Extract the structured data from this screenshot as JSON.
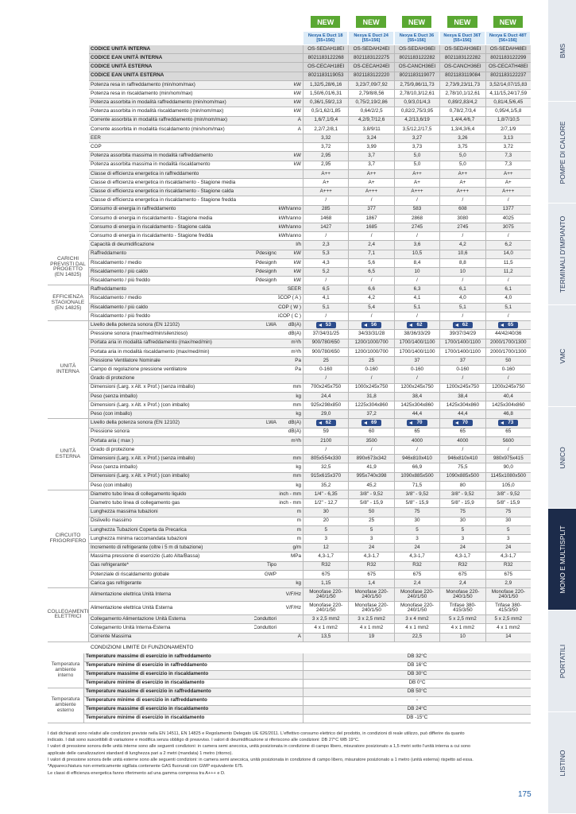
{
  "header": {
    "new_badge": "NEW",
    "products": [
      "Nexya E Duct 18 [55+156]",
      "Nexya E Duct 24 [55+156]",
      "Nexya E Duct 36 [55+156]",
      "Nexya E Duct 36T [55+156]",
      "Nexya E Duct 48T [56+156]"
    ]
  },
  "sections": [
    {
      "rows": [
        {
          "label": "CODICE UNITÀ INTERNA",
          "bold": true,
          "values": [
            "OS-SEDAH18EI",
            "OS-SEDAH24EI",
            "OS-SEDAH36EI",
            "OS-SEDAH36EI",
            "OS-SEDAH48EI"
          ]
        },
        {
          "label": "CODICE EAN UNITÀ INTERNA",
          "bold": true,
          "values": [
            "8021183122268",
            "8021183122275",
            "8021183122282",
            "8021183122282",
            "8021183122299"
          ]
        },
        {
          "label": "CODICE UNITÀ ESTERNA",
          "bold": true,
          "values": [
            "OS-CECAH18EI",
            "OS-CECAH24EI",
            "OS-CANCH36EI",
            "OS-CANCH36EI",
            "OS-CECATH48EI"
          ]
        },
        {
          "label": "CODICE EAN UNITÀ ESTERNA",
          "bold": true,
          "values": [
            "8021183119053",
            "8021183122220",
            "8021183119077",
            "8021183119084",
            "8021183122237"
          ]
        },
        {
          "label": "Potenza resa in raffreddamento (min/nom/max)",
          "unit": "kW",
          "values": [
            "1,32/5,28/6,16",
            "3,23/7,09/7,92",
            "2,75/9,86/11,73",
            "2,73/9,23/11,73",
            "3,52/14,07/15,83"
          ]
        },
        {
          "label": "Potenza resa in riscaldamento (min/nom/max)",
          "unit": "kW",
          "values": [
            "1,50/6,01/6,31",
            "2,79/8/8,56",
            "2,78/10,3/12,61",
            "2,78/10,1/12,61",
            "4,11/15,24/17,59"
          ]
        },
        {
          "label": "Potenza assorbita in modalità raffreddamento (min/nom/max)",
          "unit": "kW",
          "values": [
            "0,36/1,59/2,13",
            "0,75/2,19/2,86",
            "0,9/3,01/4,3",
            "0,89/2,83/4,2",
            "0,81/4,5/6,45"
          ]
        },
        {
          "label": "Potenza assorbita in modalità riscaldamento (min/nom/max)",
          "unit": "kW",
          "values": [
            "0,5/1,62/1,85",
            "0,64/2/2,5",
            "0,82/2,75/3,95",
            "0,78/2,7/3,4",
            "0,95/4,1/5,8"
          ]
        },
        {
          "label": "Corrente assorbita in modalità raffreddamento (min/nom/max)",
          "unit": "A",
          "values": [
            "1,6/7,1/9,4",
            "4,2/9,7/12,6",
            "4,2/13,6/19",
            "1,4/4,4/6,7",
            "1,8/7/10,5"
          ]
        },
        {
          "label": "Corrente assorbita in modalità riscaldamento (min/nom/max)",
          "unit": "A",
          "values": [
            "2,2/7,2/8,1",
            "3,8/9/11",
            "3,5/12,2/17,5",
            "1,3/4,3/6,4",
            "2/7,1/9"
          ]
        },
        {
          "label": "EER",
          "values": [
            "3,32",
            "3,24",
            "3,27",
            "3,26",
            "3,13"
          ]
        },
        {
          "label": "COP",
          "values": [
            "3,72",
            "3,99",
            "3,73",
            "3,75",
            "3,72"
          ]
        },
        {
          "label": "Potenza assorbita massima in modalità raffreddamento",
          "unit": "kW",
          "values": [
            "2,95",
            "3,7",
            "5,0",
            "5,0",
            "7,3"
          ]
        },
        {
          "label": "Potenza assorbita massima in modalità riscaldamento",
          "unit": "kW",
          "values": [
            "2,95",
            "3,7",
            "5,0",
            "5,0",
            "7,3"
          ]
        },
        {
          "label": "Classe di efficienza energetica in raffreddamento",
          "values": [
            "A++",
            "A++",
            "A++",
            "A++",
            "A++"
          ]
        },
        {
          "label": "Classe di efficienza energetica in riscaldamento - Stagione media",
          "values": [
            "A+",
            "A+",
            "A+",
            "A+",
            "A+"
          ]
        },
        {
          "label": "Classe di efficienza energetica in riscaldamento - Stagione calda",
          "values": [
            "A+++",
            "A+++",
            "A+++",
            "A+++",
            "A+++"
          ]
        },
        {
          "label": "Classe di efficienza energetica in riscaldamento - Stagione fredda",
          "values": [
            "/",
            "/",
            "/",
            "/",
            "/"
          ]
        },
        {
          "label": "Consumo di energia in raffreddamento",
          "unit": "kWh/anno",
          "values": [
            "285",
            "377",
            "583",
            "608",
            "1377"
          ]
        },
        {
          "label": "Consumo di energia in riscaldamento - Stagione media",
          "unit": "kWh/anno",
          "values": [
            "1468",
            "1867",
            "2868",
            "3080",
            "4025"
          ]
        },
        {
          "label": "Consumo di energia in riscaldamento - Stagione calda",
          "unit": "kWh/anno",
          "values": [
            "1427",
            "1685",
            "2745",
            "2745",
            "3075"
          ]
        },
        {
          "label": "Consumo di energia in riscaldamento - Stagione fredda",
          "unit": "kWh/anno",
          "values": [
            "/",
            "/",
            "/",
            "/",
            "/"
          ]
        },
        {
          "label": "Capacità di deumidificazione",
          "unit": "l/h",
          "values": [
            "2,3",
            "2,4",
            "3,6",
            "4,2",
            "6,2"
          ]
        }
      ]
    },
    {
      "title": "CARICHI PREVISTI DAL PROGETTO (EN 14825)",
      "rows": [
        {
          "label": "Raffreddamento",
          "sub": "Pdesignc",
          "unit": "kW",
          "values": [
            "5,3",
            "7,1",
            "10,5",
            "10,6",
            "14,0"
          ]
        },
        {
          "label": "Riscaldamento / medio",
          "sub": "Pdesignh",
          "unit": "kW",
          "values": [
            "4,3",
            "5,6",
            "8,4",
            "8,8",
            "11,5"
          ]
        },
        {
          "label": "Riscaldamento / più caldo",
          "sub": "Pdesignh",
          "unit": "kW",
          "values": [
            "5,2",
            "6,5",
            "10",
            "10",
            "11,2"
          ]
        },
        {
          "label": "Riscaldamento / più freddo",
          "sub": "Pdesignh",
          "unit": "kW",
          "values": [
            "/",
            "/",
            "/",
            "/",
            "/"
          ]
        }
      ]
    },
    {
      "title": "EFFICIENZA STAGIONALE (EN 14825)",
      "rows": [
        {
          "label": "Raffreddamento",
          "unit": "SEER",
          "values": [
            "6,5",
            "6,6",
            "6,3",
            "6,1",
            "6,1"
          ]
        },
        {
          "label": "Riscaldamento / medio",
          "unit": "SCOP ( A )",
          "values": [
            "4,1",
            "4,2",
            "4,1",
            "4,0",
            "4,0"
          ]
        },
        {
          "label": "Riscaldamento / più caldo",
          "unit": "SCOP ( W )",
          "values": [
            "5,1",
            "5,4",
            "5,1",
            "5,1",
            "5,1"
          ]
        },
        {
          "label": "Riscaldamento / più freddo",
          "unit": "SCOP ( C )",
          "values": [
            "/",
            "/",
            "/",
            "/",
            "/"
          ]
        }
      ]
    },
    {
      "title": "UNITÀ INTERNA",
      "rows": [
        {
          "label": "Livello della potenza sonora (EN 12102)",
          "sub": "LWA",
          "unit": "dB(A)",
          "badge": true,
          "values": [
            "53",
            "56",
            "62",
            "62",
            "65"
          ]
        },
        {
          "label": "Pressione sonora (max/med/min/silenzioso)",
          "unit": "dB(A)",
          "values": [
            "37/34/31/25",
            "34/33/31/28",
            "38/36/33/29",
            "39/37/34/29",
            "44/42/40/36"
          ]
        },
        {
          "label": "Portata aria in modalità raffreddamento (max/med/min)",
          "unit": "m³/h",
          "values": [
            "900/780/650",
            "1200/1000/700",
            "1700/1400/1100",
            "1700/1400/1100",
            "2000/1700/1300"
          ]
        },
        {
          "label": "Portata aria in modalità riscaldamento (max/med/min)",
          "unit": "m³/h",
          "values": [
            "900/780/650",
            "1200/1000/700",
            "1700/1400/1100",
            "1700/1400/1100",
            "2000/1700/1300"
          ]
        },
        {
          "label": "Pressione Ventilatore Nominale",
          "unit": "Pa",
          "values": [
            "25",
            "25",
            "37",
            "37",
            "50"
          ]
        },
        {
          "label": "Campo di regolazione pressione ventilatore",
          "unit": "Pa",
          "values": [
            "0-160",
            "0-160",
            "0-160",
            "0-160",
            "0-160"
          ]
        },
        {
          "label": "Grado di protezione",
          "values": [
            "/",
            "/",
            "/",
            "/",
            "/"
          ]
        },
        {
          "label": "Dimensioni (Larg. x Alt. x Prof.) (senza imballo)",
          "unit": "mm",
          "values": [
            "700x245x750",
            "1000x245x750",
            "1200x245x750",
            "1200x245x750",
            "1200x245x750"
          ]
        },
        {
          "label": "Peso (senza imballo)",
          "unit": "kg",
          "values": [
            "24,4",
            "31,8",
            "38,4",
            "38,4",
            "40,4"
          ]
        },
        {
          "label": "Dimensioni (Larg. x Alt. x Prof.) (con imballo)",
          "unit": "mm",
          "values": [
            "925x298x850",
            "1225x304x860",
            "1425x304x860",
            "1425x304x860",
            "1425x304x860"
          ]
        },
        {
          "label": "Peso (con imballo)",
          "unit": "kg",
          "values": [
            "29,0",
            "37,2",
            "44,4",
            "44,4",
            "46,8"
          ]
        }
      ]
    },
    {
      "title": "UNITÀ ESTERNA",
      "rows": [
        {
          "label": "Livello della potenza sonora (EN 12102)",
          "sub": "LWA",
          "unit": "dB(A)",
          "badge": true,
          "values": [
            "62",
            "69",
            "70",
            "70",
            "73"
          ]
        },
        {
          "label": "Pressione sonora",
          "unit": "dB(A)",
          "values": [
            "59",
            "60",
            "65",
            "65",
            "65"
          ]
        },
        {
          "label": "Portata aria ( max )",
          "unit": "m³/h",
          "values": [
            "2100",
            "3500",
            "4000",
            "4000",
            "5600"
          ]
        },
        {
          "label": "Grado di protezione",
          "values": [
            "/",
            "/",
            "/",
            "/",
            "/"
          ]
        },
        {
          "label": "Dimensioni (Larg. x Alt. x Prof.) (senza imballo)",
          "unit": "mm",
          "values": [
            "805x554x330",
            "890x673x342",
            "946x810x410",
            "946x810x410",
            "980x975x415"
          ]
        },
        {
          "label": "Peso (senza imballo)",
          "unit": "kg",
          "values": [
            "32,5",
            "41,9",
            "66,9",
            "75,5",
            "90,0"
          ]
        },
        {
          "label": "Dimensioni (Larg. x Alt. x Prof.) (con imballo)",
          "unit": "mm",
          "values": [
            "915x615x370",
            "995x740x398",
            "1090x885x500",
            "1090x885x500",
            "1145x1080x500"
          ]
        },
        {
          "label": "Peso (con imballo)",
          "unit": "kg",
          "values": [
            "35,2",
            "45,2",
            "71,5",
            "80",
            "105,0"
          ]
        }
      ]
    },
    {
      "title": "CIRCUITO FRIGORIFERO",
      "rows": [
        {
          "label": "Diametro tubo linea di collegamento liquido",
          "unit": "inch - mm",
          "values": [
            "1/4\" - 6,35",
            "3/8\" - 9,52",
            "3/8\" - 9,52",
            "3/8\" - 9,52",
            "3/8\" - 9,52"
          ]
        },
        {
          "label": "Diametro tubo linea di collegamento gas",
          "unit": "inch - mm",
          "values": [
            "1/2\" - 12,7",
            "5/8\" - 15,9",
            "5/8\" - 15,9",
            "5/8\" - 15,9",
            "5/8\" - 15,9"
          ]
        },
        {
          "label": "Lunghezza massima tubazioni",
          "unit": "m",
          "values": [
            "30",
            "50",
            "75",
            "75",
            "75"
          ]
        },
        {
          "label": "Dislivello massimo",
          "unit": "m",
          "values": [
            "20",
            "25",
            "30",
            "30",
            "30"
          ]
        },
        {
          "label": "Lunghezza Tubazioni Coperta da Precarica",
          "unit": "m",
          "values": [
            "5",
            "5",
            "5",
            "5",
            "5"
          ]
        },
        {
          "label": "Lunghezza minima raccomandata tubazioni",
          "unit": "m",
          "values": [
            "3",
            "3",
            "3",
            "3",
            "3"
          ]
        },
        {
          "label": "Incremento di refrigerante (oltre i 5 m di tubazione)",
          "unit": "g/m",
          "values": [
            "12",
            "24",
            "24",
            "24",
            "24"
          ]
        },
        {
          "label": "Massima pressione di esercizio (Lato Alta/Bassa)",
          "unit": "MPa",
          "values": [
            "4,3-1,7",
            "4,3-1,7",
            "4,3-1,7",
            "4,3-1,7",
            "4,3-1,7"
          ]
        },
        {
          "label": "Gas refrigerante*",
          "sub": "Tipo",
          "values": [
            "R32",
            "R32",
            "R32",
            "R32",
            "R32"
          ]
        },
        {
          "label": "Potenziale di riscaldamento globale",
          "sub": "GWP",
          "values": [
            "675",
            "675",
            "675",
            "675",
            "675"
          ]
        },
        {
          "label": "Carica gas refrigerante",
          "unit": "kg",
          "values": [
            "1,15",
            "1,4",
            "2,4",
            "2,4",
            "2,9"
          ]
        }
      ]
    },
    {
      "title": "COLLEGAMENTI ELETTRICI",
      "rows": [
        {
          "label": "Alimentazione elettrica Unità Interna",
          "unit": "V/F/Hz",
          "values": [
            "Monofase 220-240/1/50",
            "Monofase 220-240/1/50",
            "Monofase 220-240/1/50",
            "Monofase 220-240/1/50",
            "Monofase 220-240/1/50"
          ]
        },
        {
          "label": "Alimentazione elettrica Unità Esterna",
          "unit": "V/F/Hz",
          "values": [
            "Monofase 220-240/1/50",
            "Monofase 220-240/1/50",
            "Monofase 220-240/1/50",
            "Trifase 380-415/3/50",
            "Trifase 380-415/3/50"
          ]
        },
        {
          "label": "Collegamento Alimentazione Unità Esterna",
          "sub": "Conduttori",
          "values": [
            "3 x 2,5 mm2",
            "3 x 2,5 mm2",
            "3 x 4 mm2",
            "5 x 2,5 mm2",
            "5 x 2,5 mm2"
          ]
        },
        {
          "label": "Collegamento Unità Interna-Esterna",
          "sub": "Conduttori",
          "values": [
            "4 x 1 mm2",
            "4 x 1 mm2",
            "4 x 1 mm2",
            "4 x 1 mm2",
            "4 x 1 mm2"
          ]
        },
        {
          "label": "Corrente Massima",
          "unit": "A",
          "values": [
            "13,5",
            "19",
            "22,5",
            "10",
            "14"
          ]
        }
      ]
    }
  ],
  "conditions": {
    "title": "CONDIZIONI LIMITE DI FUNZIONAMENTO",
    "groups": [
      {
        "label": "Temperatura ambiente interno",
        "rows": [
          {
            "label": "Temperature massime di esercizio in raffreddamento",
            "value": "DB 32°C"
          },
          {
            "label": "Temperature minime di esercizio in raffreddamento",
            "value": "DB 16°C"
          },
          {
            "label": "Temperature massime di esercizio in riscaldamento",
            "value": "DB 30°C"
          },
          {
            "label": "Temperature minime di esercizio in riscaldamento",
            "value": "DB 0°C"
          }
        ]
      },
      {
        "label": "Temperatura ambiente esterno",
        "rows": [
          {
            "label": "Temperature massime di esercizio in raffreddamento",
            "value": "DB 50°C"
          },
          {
            "label": "Temperature minime di esercizio in raffreddamento",
            "value": "-"
          },
          {
            "label": "Temperature massime di esercizio in riscaldamento",
            "value": "DB 24°C"
          },
          {
            "label": "Temperature minime di esercizio in riscaldamento",
            "value": "DB -15°C"
          }
        ]
      }
    ]
  },
  "footnotes": [
    "I dati dichiarati sono relativi alle condizioni previste nella EN 14511, EN 14825 e Regolamento Delegato UE 626/2011. L'effettivo consumo elettrico del prodotto, in condizioni di reale utilizzo, può differire da quanto",
    "indicato. I dati sono suscettibili di variazione e modifica senza obbligo di preavviso. I valori di deumidificazione si riferiscono alle condizioni: DB 27°C WB 19°C.",
    "I valori di pressione sonora delle unità interne sono alle seguenti condizioni: in camera semi anecoica, unità posizionata in condizione di campo libero, misuratore posizionato a 1,5 metri sotto l'unità interna a cui sono",
    "applicate delle canalizzazioni standard di lunghezza pari a 2 metri (mandata) 1 metro (ritorno).",
    "I valori di pressione sonora delle unità esterne sono alle seguenti condizioni: in camera semi anecoica, unità posizionata in condizione di campo libero, misuratore posizionato a 1 metro (unità esterna) rispetto ad essa.",
    "*Apparecchiatura non ermeticamente sigillata contenente GAS fluorurati con GWP equivalente 675.",
    "Le classi di efficienza energetica fanno riferimento ad una gamma compresa tra A+++ e D."
  ],
  "page_number": "175",
  "sidebar": {
    "tabs": [
      "BMS",
      "POMPE DI CALORE",
      "TERMINALI D'IMPIANTO",
      "VMC",
      "UNICO",
      "MONO E MULTISPLIT",
      "PORTATILI",
      "LISTINO"
    ],
    "active": 5
  }
}
